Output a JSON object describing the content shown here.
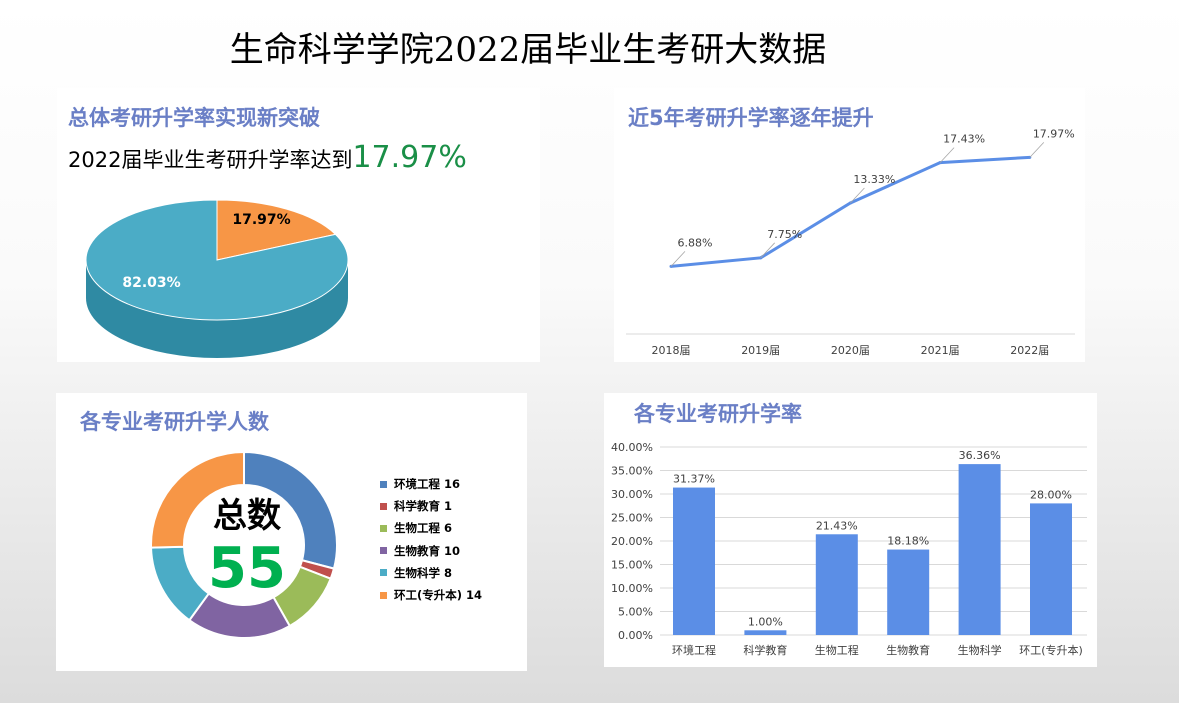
{
  "title": "生命科学学院2022届毕业生考研大数据",
  "panels": {
    "overall": {
      "title": "总体考研升学率实现新突破",
      "subtitle": "2022届毕业生考研升学率达到",
      "highlight": "17.97%"
    },
    "trend": {
      "title": "近5年考研升学率逐年提升"
    },
    "counts": {
      "title": "各专业考研升学人数",
      "center_label": "总数",
      "center_value": "55"
    },
    "rates": {
      "title": "各专业考研升学率"
    }
  },
  "chart_data": [
    {
      "type": "pie",
      "style": "3d",
      "slices": [
        {
          "label": "17.97%",
          "value": 17.97,
          "color": "#f79646"
        },
        {
          "label": "82.03%",
          "value": 82.03,
          "color": "#4bacc6"
        }
      ]
    },
    {
      "type": "line",
      "categories": [
        "2018届",
        "2019届",
        "2020届",
        "2021届",
        "2022届"
      ],
      "values": [
        6.88,
        7.75,
        13.33,
        17.43,
        17.97
      ],
      "labels": [
        "6.88%",
        "7.75%",
        "13.33%",
        "17.43%",
        "17.97%"
      ],
      "color": "#5b8ee6",
      "grid": false
    },
    {
      "type": "pie",
      "style": "donut",
      "total": 55,
      "slices": [
        {
          "label": "环境工程",
          "value": 16,
          "color": "#4f81bd"
        },
        {
          "label": "科学教育",
          "value": 1,
          "color": "#c0504d"
        },
        {
          "label": "生物工程",
          "value": 6,
          "color": "#9bbb59"
        },
        {
          "label": "生物教育",
          "value": 10,
          "color": "#8064a2"
        },
        {
          "label": "生物科学",
          "value": 8,
          "color": "#4bacc6"
        },
        {
          "label": "环工(专升本)",
          "value": 14,
          "color": "#f79646"
        }
      ],
      "legend": "right"
    },
    {
      "type": "bar",
      "categories": [
        "环境工程",
        "科学教育",
        "生物工程",
        "生物教育",
        "生物科学",
        "环工(专升本)"
      ],
      "values": [
        31.37,
        1.0,
        21.43,
        18.18,
        36.36,
        28.0
      ],
      "labels": [
        "31.37%",
        "1.00%",
        "21.43%",
        "18.18%",
        "36.36%",
        "28.00%"
      ],
      "ylim": [
        0,
        40
      ],
      "yticks": [
        "0.00%",
        "5.00%",
        "10.00%",
        "15.00%",
        "20.00%",
        "25.00%",
        "30.00%",
        "35.00%",
        "40.00%"
      ],
      "grid": true,
      "color": "#5b8ee6"
    }
  ]
}
